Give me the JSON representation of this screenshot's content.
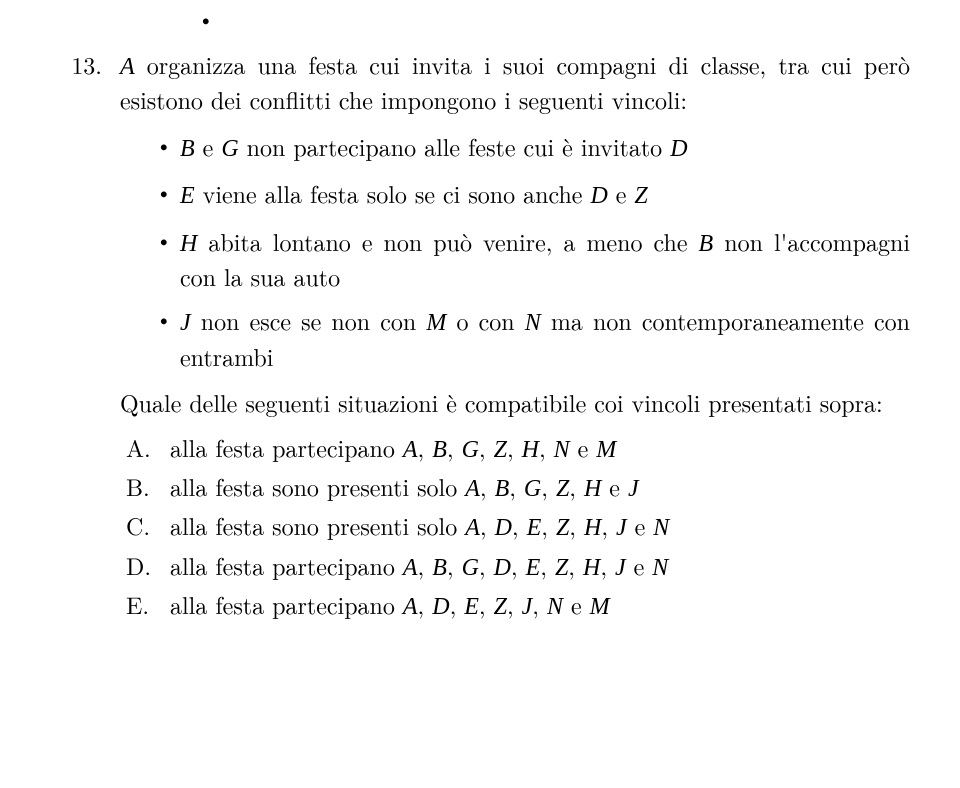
{
  "colors": {
    "text": "#000000",
    "background": "#ffffff"
  },
  "fontsize_pt": 18,
  "problem": {
    "number": "13.",
    "stem_before": "organizza una festa cui invita i suoi compagni di classe, tra cui però esistono dei conflitti che impongono i seguenti vincoli:",
    "A": "A",
    "B": "B",
    "G": "G",
    "D": "D",
    "E": "E",
    "Z": "Z",
    "H": "H",
    "J": "J",
    "M": "M",
    "N": "N",
    "constraints": {
      "c1_a": " e ",
      "c1_b": " non partecipano alle feste cui è invitato ",
      "c2_a": " viene alla festa solo se ci sono anche ",
      "c2_b": " e ",
      "c3_a": " abita lontano e non può venire, a meno che ",
      "c3_b": " non l'accompagni con la sua auto",
      "c4_a": " non esce se non con ",
      "c4_b": " o con ",
      "c4_c": " ma non contemporaneamente con entrambi"
    },
    "question": "Quale delle seguenti situazioni è compatibile coi vincoli presentati sopra:",
    "options": {
      "A": {
        "letter": "A.",
        "pre": "alla festa partecipano ",
        "people": [
          "A",
          "B",
          "G",
          "Z",
          "H",
          "N",
          "M"
        ]
      },
      "B": {
        "letter": "B.",
        "pre": "alla festa sono presenti solo ",
        "people": [
          "A",
          "B",
          "G",
          "Z",
          "H",
          "J"
        ]
      },
      "C": {
        "letter": "C.",
        "pre": "alla festa sono presenti solo ",
        "people": [
          "A",
          "D",
          "E",
          "Z",
          "H",
          "J",
          "N"
        ]
      },
      "D": {
        "letter": "D.",
        "pre": "alla festa partecipano ",
        "people": [
          "A",
          "B",
          "G",
          "D",
          "E",
          "Z",
          "H",
          "J",
          "N"
        ]
      },
      "E": {
        "letter": "E.",
        "pre": "alla festa partecipano ",
        "people": [
          "A",
          "D",
          "E",
          "Z",
          "J",
          "N",
          "M"
        ]
      }
    }
  }
}
